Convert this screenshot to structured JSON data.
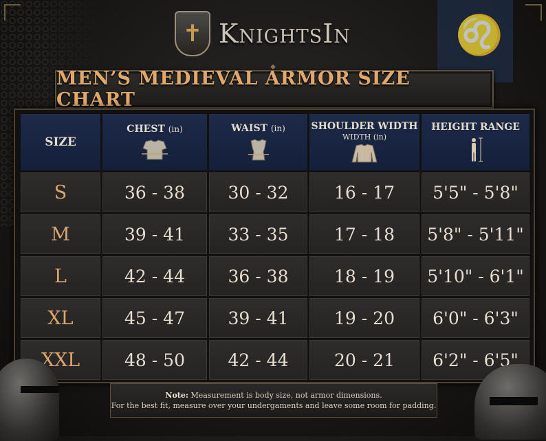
{
  "brand": {
    "name": "KnightsIn"
  },
  "title": "MEN’S MEDIEVAL ARMOR SIZE CHART",
  "table": {
    "headers": [
      {
        "label": "SIZE",
        "unit": ""
      },
      {
        "label": "CHEST",
        "unit": "(in)",
        "icon": "chest-armor-icon"
      },
      {
        "label": "WAIST",
        "unit": "(in)",
        "icon": "waist-armor-icon"
      },
      {
        "label": "SHOULDER WIDTH",
        "line2": "WIDTH",
        "unit": "(in)",
        "icon": "shoulder-tunic-icon"
      },
      {
        "label": "HEIGHT RANGE",
        "unit": "",
        "icon": "height-figure-icon"
      }
    ],
    "rows": [
      {
        "size": "S",
        "chest": "36 - 38",
        "waist": "30 - 32",
        "shoulder": "16 - 17",
        "height": "5'5\" - 5'8\""
      },
      {
        "size": "M",
        "chest": "39 - 41",
        "waist": "33 - 35",
        "shoulder": "17 - 18",
        "height": "5'8\" - 5'11\""
      },
      {
        "size": "L",
        "chest": "42 - 44",
        "waist": "36 - 38",
        "shoulder": "18 - 19",
        "height": "5'10\" - 6'1\""
      },
      {
        "size": "XL",
        "chest": "45 - 47",
        "waist": "39 - 41",
        "shoulder": "19 - 20",
        "height": "6'0\" - 6'3\""
      },
      {
        "size": "XXL",
        "chest": "48 - 50",
        "waist": "42 - 44",
        "shoulder": "20 - 21",
        "height": "6'2\" - 6'5\""
      }
    ]
  },
  "note": {
    "label": "Note:",
    "line1": "Measurement is body size, not armor dimensions.",
    "line2": "For the best fit, measure over your undergaments and leave some room for padding."
  },
  "colors": {
    "accent": "#dba56d",
    "header_bg": "#1d2a48",
    "cell_bg": "#2e2d2b"
  }
}
